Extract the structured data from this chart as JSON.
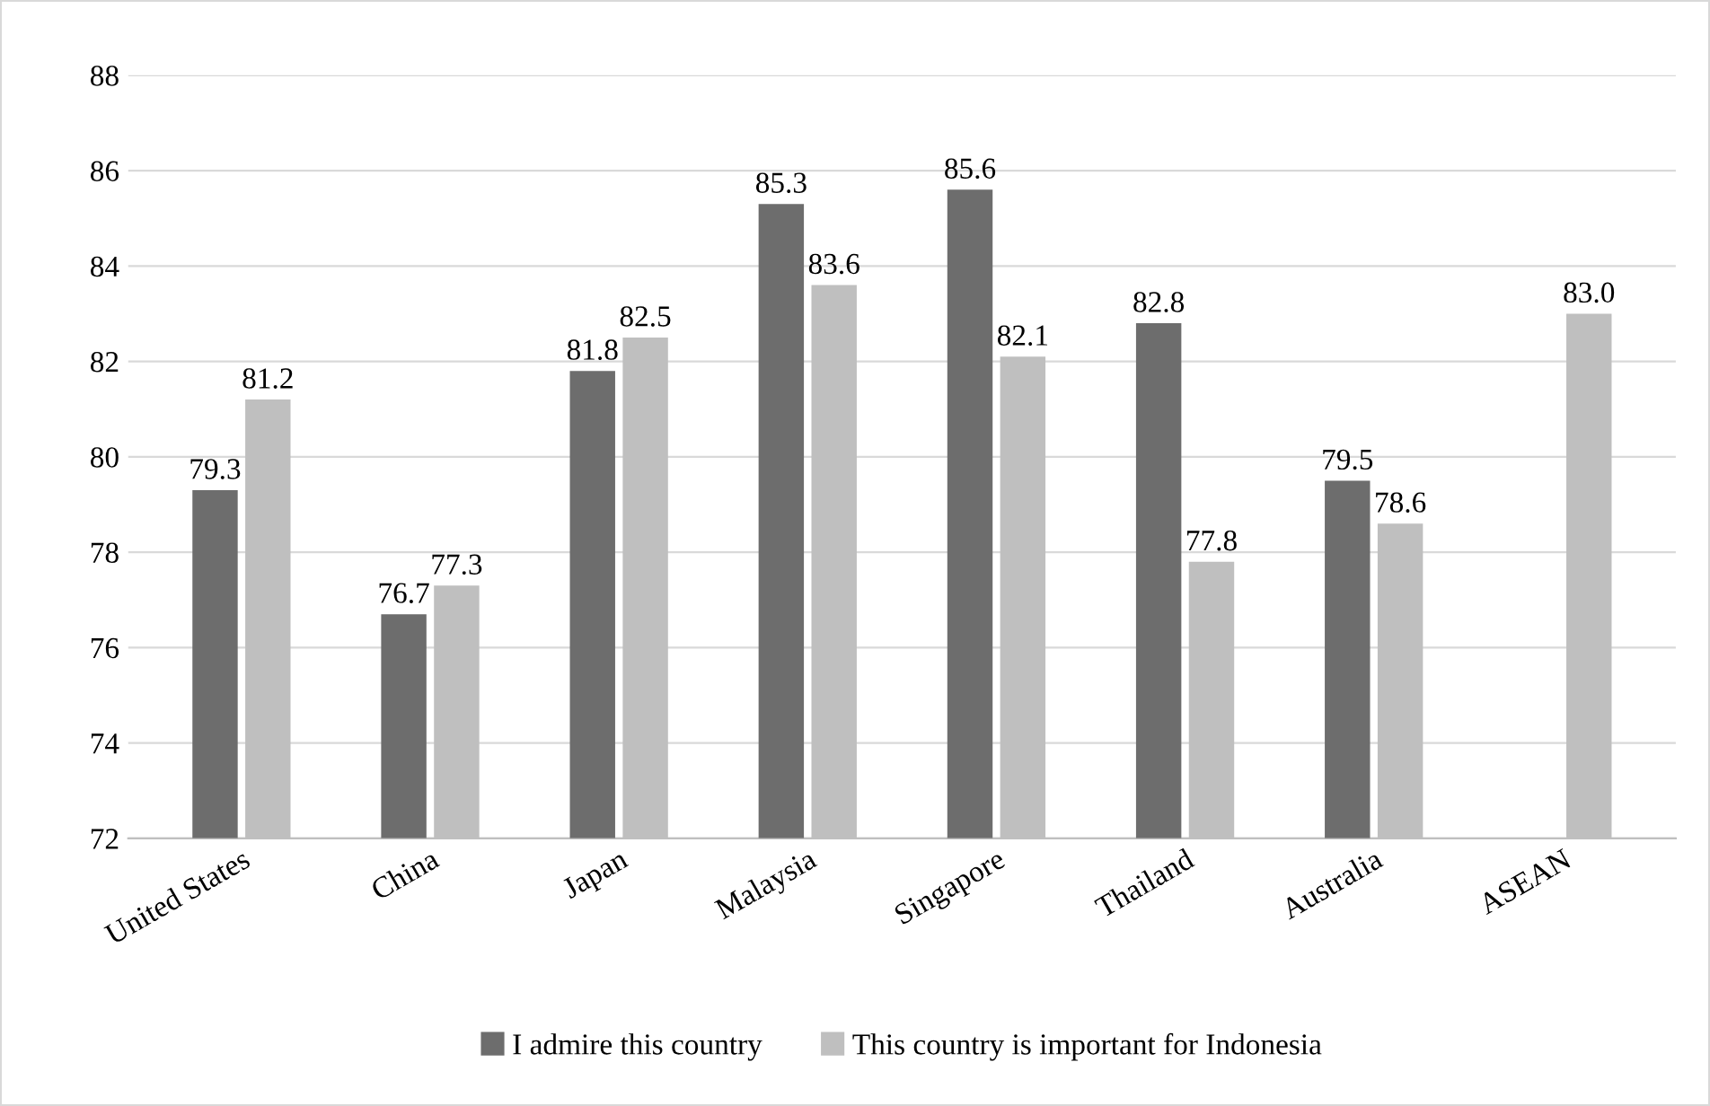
{
  "chart_data": {
    "type": "bar",
    "categories": [
      "United States",
      "China",
      "Japan",
      "Malaysia",
      "Singapore",
      "Thailand",
      "Australia",
      "ASEAN"
    ],
    "series": [
      {
        "name": "I admire this country",
        "color": "#6d6d6d",
        "values": [
          79.3,
          76.7,
          81.8,
          85.3,
          85.6,
          82.8,
          79.5,
          null
        ]
      },
      {
        "name": "This country is important for Indonesia",
        "color": "#bfbfbf",
        "values": [
          81.2,
          77.3,
          82.5,
          83.6,
          82.1,
          77.8,
          78.6,
          83.0
        ],
        "value_labels": [
          "81.2",
          "77.3",
          "82.5",
          "83.6",
          "82.1",
          "77.8",
          "78.6",
          "83.0"
        ]
      }
    ],
    "ylim": [
      72,
      88
    ],
    "yticks": [
      72,
      74,
      76,
      78,
      80,
      82,
      84,
      86,
      88
    ],
    "grid": "y",
    "legend": "bottom",
    "data_labels": true
  }
}
